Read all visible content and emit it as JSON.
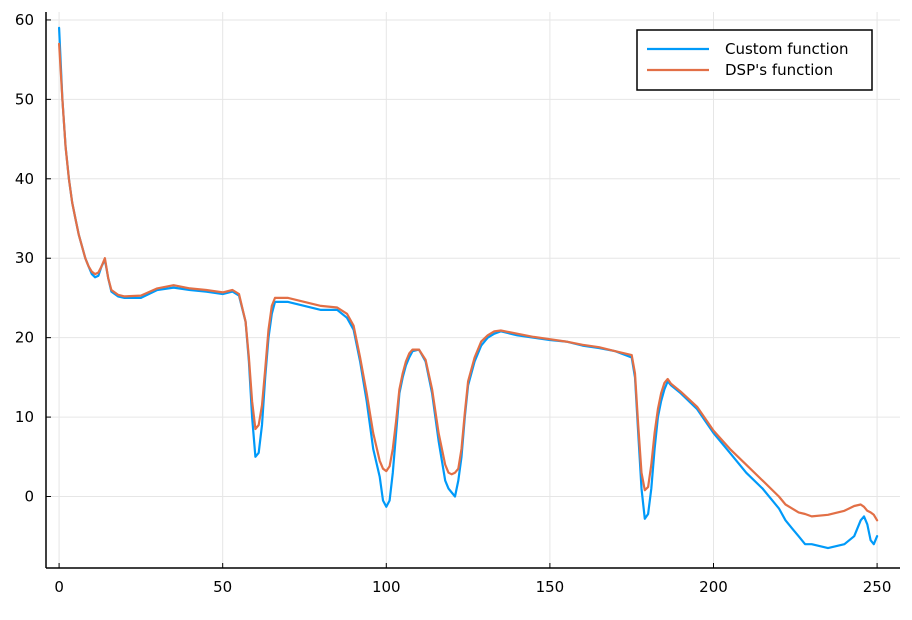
{
  "chart_data": {
    "type": "line",
    "title": "",
    "xlabel": "",
    "ylabel": "",
    "xlim": [
      -4,
      257
    ],
    "ylim": [
      -9,
      61
    ],
    "x_ticks": [
      0,
      50,
      100,
      150,
      200,
      250
    ],
    "y_ticks": [
      0,
      10,
      20,
      30,
      40,
      50,
      60
    ],
    "grid": true,
    "legend_position": "top-right",
    "series": [
      {
        "name": "Custom function",
        "color": "#009af9",
        "x": [
          0,
          1,
          2,
          3,
          4,
          5,
          6,
          7,
          8,
          9,
          10,
          11,
          12,
          13,
          14,
          15,
          16,
          18,
          20,
          25,
          30,
          35,
          40,
          45,
          50,
          53,
          55,
          57,
          58,
          59,
          60,
          61,
          62,
          63,
          64,
          65,
          66,
          70,
          75,
          80,
          85,
          88,
          90,
          92,
          94,
          96,
          98,
          99,
          100,
          101,
          102,
          103,
          104,
          105,
          106,
          107,
          108,
          110,
          112,
          114,
          116,
          118,
          119,
          120,
          121,
          122,
          123,
          124,
          125,
          127,
          129,
          131,
          133,
          135,
          140,
          145,
          150,
          155,
          160,
          165,
          170,
          175,
          176,
          177,
          178,
          179,
          180,
          181,
          182,
          183,
          184,
          185,
          186,
          187,
          190,
          195,
          200,
          205,
          210,
          215,
          220,
          222,
          224,
          226,
          228,
          230,
          235,
          240,
          243,
          245,
          246,
          247,
          248,
          249,
          250
        ],
        "values": [
          59,
          50,
          44,
          40,
          37,
          35,
          33,
          31.5,
          30,
          29,
          28,
          27.6,
          27.8,
          29,
          29.8,
          27.5,
          25.8,
          25.2,
          25,
          25,
          26,
          26.3,
          26,
          25.8,
          25.5,
          25.8,
          25.3,
          22,
          17,
          10,
          5,
          5.5,
          9,
          15,
          20,
          23,
          24.5,
          24.5,
          24,
          23.5,
          23.5,
          22.5,
          21,
          17,
          12,
          6,
          2.5,
          -0.5,
          -1.3,
          -0.5,
          3,
          8,
          13,
          15,
          16.5,
          17.5,
          18.3,
          18.5,
          17,
          13,
          7,
          2,
          1,
          0.5,
          0,
          2,
          5,
          10,
          14,
          17,
          19,
          20,
          20.5,
          20.8,
          20.3,
          20,
          19.7,
          19.5,
          19,
          18.7,
          18.3,
          17.5,
          15,
          8,
          1,
          -2.8,
          -2.2,
          1,
          6,
          10,
          12,
          13.5,
          14.5,
          14,
          13,
          11,
          8,
          5.5,
          3,
          1,
          -1.5,
          -3,
          -4,
          -5,
          -6,
          -6,
          -6.5,
          -6,
          -5,
          -3,
          -2.5,
          -3.5,
          -5.5,
          -6,
          -5
        ]
      },
      {
        "name": "DSP's function",
        "color": "#e26f46",
        "x": [
          0,
          1,
          2,
          3,
          4,
          5,
          6,
          7,
          8,
          9,
          10,
          11,
          12,
          13,
          14,
          15,
          16,
          18,
          20,
          25,
          30,
          35,
          40,
          45,
          50,
          53,
          55,
          57,
          58,
          59,
          60,
          61,
          62,
          63,
          64,
          65,
          66,
          70,
          75,
          80,
          85,
          88,
          90,
          92,
          94,
          96,
          98,
          99,
          100,
          101,
          102,
          103,
          104,
          105,
          106,
          107,
          108,
          110,
          112,
          114,
          116,
          118,
          119,
          120,
          121,
          122,
          123,
          124,
          125,
          127,
          129,
          131,
          133,
          135,
          140,
          145,
          150,
          155,
          160,
          165,
          170,
          175,
          176,
          177,
          178,
          179,
          180,
          181,
          182,
          183,
          184,
          185,
          186,
          187,
          190,
          195,
          200,
          205,
          210,
          215,
          220,
          222,
          224,
          226,
          228,
          230,
          235,
          240,
          243,
          245,
          246,
          247,
          248,
          249,
          250
        ],
        "values": [
          57,
          50,
          44,
          40,
          37,
          35,
          33,
          31.5,
          30,
          29,
          28.3,
          28,
          28.2,
          29,
          30,
          27.5,
          26,
          25.4,
          25.2,
          25.3,
          26.2,
          26.6,
          26.2,
          26,
          25.7,
          26,
          25.5,
          22,
          17.5,
          12,
          8.5,
          9,
          11.5,
          16,
          21,
          24,
          25,
          25,
          24.5,
          24,
          23.8,
          23,
          21.5,
          17.5,
          13,
          8,
          4.5,
          3.5,
          3.2,
          3.8,
          6,
          9.5,
          13.5,
          15.5,
          17,
          18,
          18.5,
          18.5,
          17.2,
          13.5,
          8,
          4,
          3,
          2.8,
          3,
          3.5,
          6,
          10.5,
          14.5,
          17.5,
          19.5,
          20.3,
          20.8,
          20.9,
          20.5,
          20.1,
          19.8,
          19.5,
          19.1,
          18.8,
          18.3,
          17.8,
          15.5,
          9,
          3,
          0.8,
          1.2,
          4,
          8,
          11,
          13,
          14.3,
          14.8,
          14.2,
          13.2,
          11.3,
          8.3,
          6,
          4,
          2,
          0,
          -1,
          -1.5,
          -2,
          -2.2,
          -2.5,
          -2.3,
          -1.8,
          -1.2,
          -1,
          -1.3,
          -1.8,
          -2,
          -2.3,
          -3
        ]
      }
    ]
  }
}
